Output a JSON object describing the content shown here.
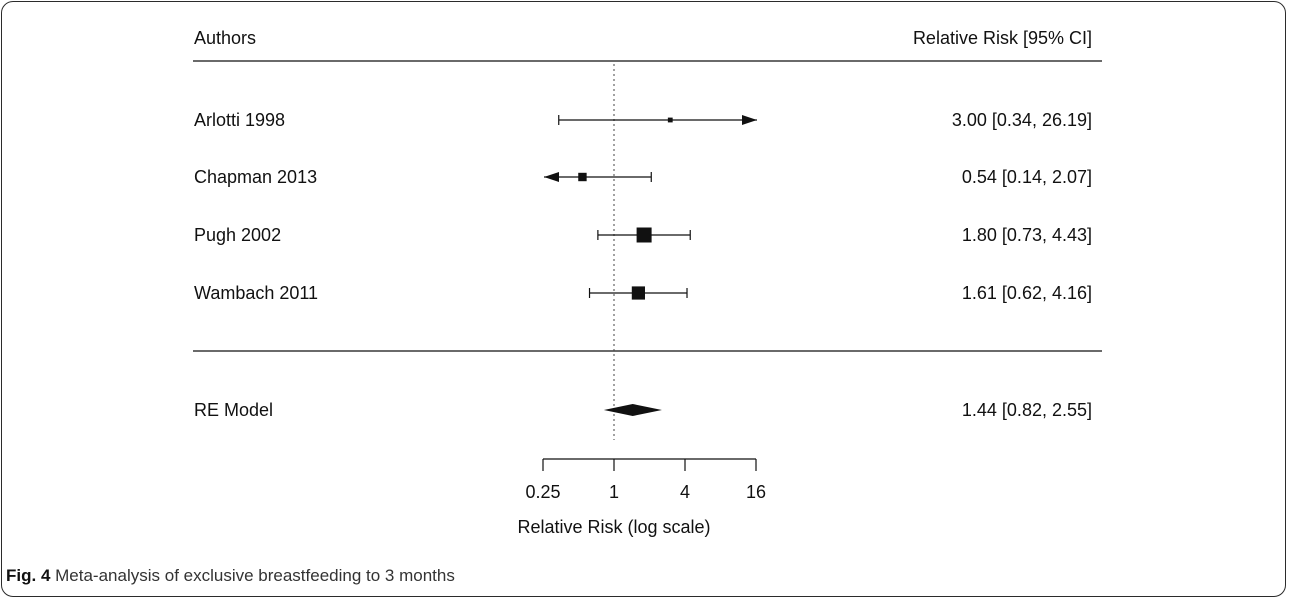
{
  "chart_data": {
    "type": "forest",
    "header": {
      "left": "Authors",
      "right": "Relative Risk [95% CI]"
    },
    "studies": [
      {
        "label": "Arlotti 1998",
        "estimate": 3.0,
        "lower": 0.34,
        "upper": 26.19,
        "text": "3.00 [0.34, 26.19]",
        "clipped_upper": true,
        "clipped_lower": false,
        "weight": 0.15
      },
      {
        "label": "Chapman 2013",
        "estimate": 0.54,
        "lower": 0.14,
        "upper": 2.07,
        "text": "0.54 [0.14,  2.07]",
        "clipped_upper": false,
        "clipped_lower": true,
        "weight": 0.45
      },
      {
        "label": "Pugh 2002",
        "estimate": 1.8,
        "lower": 0.73,
        "upper": 4.43,
        "text": "1.80 [0.73,  4.43]",
        "clipped_upper": false,
        "clipped_lower": false,
        "weight": 1.0
      },
      {
        "label": "Wambach 2011",
        "estimate": 1.61,
        "lower": 0.62,
        "upper": 4.16,
        "text": "1.61 [0.62,  4.16]",
        "clipped_upper": false,
        "clipped_lower": false,
        "weight": 0.85
      }
    ],
    "summary": {
      "label": "RE Model",
      "estimate": 1.44,
      "lower": 0.82,
      "upper": 2.55,
      "text": "1.44 [0.82,  2.55]"
    },
    "xaxis": {
      "label": "Relative Risk (log scale)",
      "scale": "log2",
      "ticks": [
        0.25,
        1,
        4,
        16
      ],
      "tick_labels": [
        "0.25",
        "1",
        "4",
        "16"
      ],
      "range": [
        0.25,
        16
      ],
      "reference_line": 1
    }
  },
  "caption": {
    "figure_label": "Fig. 4",
    "text": "Meta-analysis of exclusive breastfeeding to 3 months"
  }
}
